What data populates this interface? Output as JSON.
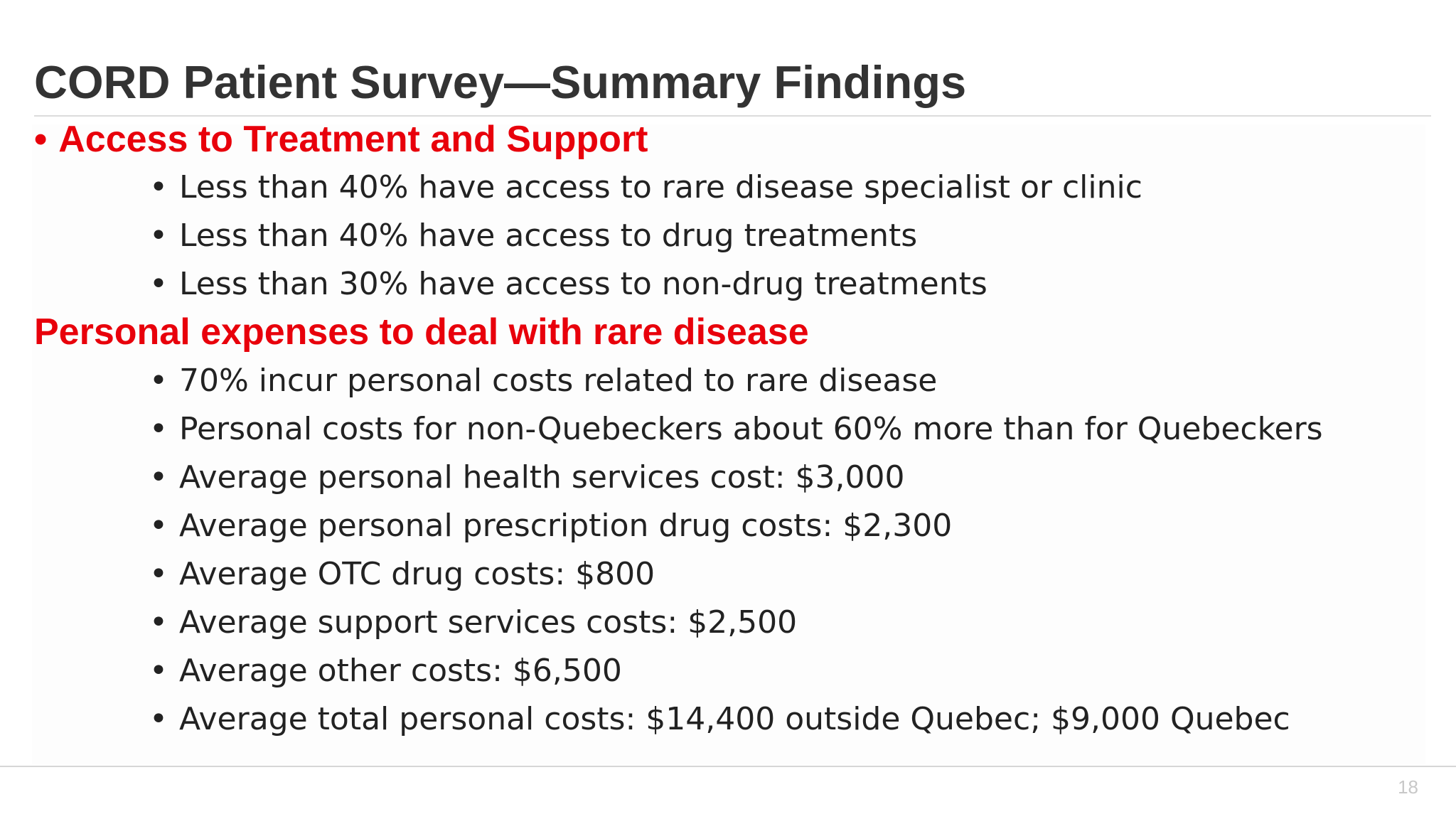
{
  "slide": {
    "title": "CORD Patient Survey—Summary Findings",
    "bullet_glyph": "•",
    "sections": [
      {
        "heading": "Access to Treatment and Support",
        "items": [
          "Less than 40% have access to rare disease specialist or clinic",
          "Less than 40% have access to drug treatments",
          "Less than 30% have access to non-drug treatments"
        ]
      },
      {
        "heading": "Personal expenses to deal with rare disease",
        "items": [
          "70% incur personal costs related to rare disease",
          "Personal costs for non-Quebeckers about 60% more than for Quebeckers",
          "Average personal health services cost: $3,000",
          "Average personal prescription drug costs: $2,300",
          "Average OTC drug costs: $800",
          "Average support services costs: $2,500",
          "Average other costs: $6,500",
          "Average total personal costs: $14,400 outside Quebec; $9,000 Quebec"
        ]
      }
    ],
    "page_number": "18"
  },
  "colors": {
    "title": "#333333",
    "heading": "#e8000b",
    "body": "#222222",
    "page_number": "#c8c8c8",
    "rule": "#dcdcdc"
  }
}
